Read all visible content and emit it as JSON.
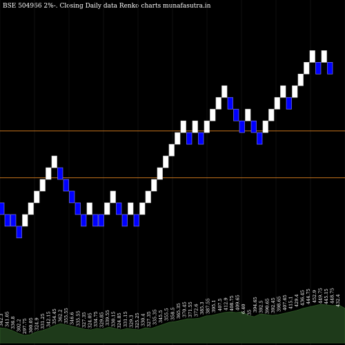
{
  "chart_data": {
    "type": "renko",
    "title": "BSE 504966  2%-.  Closing Daily data  Renko  charts munafasutra.in",
    "box_size_percent": 2,
    "colors": {
      "background": "#000000",
      "up_brick": "#ffffff",
      "down_brick": "#0000ff",
      "reference_line": "#c8761e",
      "volume_fill": "#1e3a1a",
      "volume_line": "#2f5a26"
    },
    "reference_lines": [
      362,
      390
    ],
    "bricks": [
      {
        "dir": "down",
        "low": 340
      },
      {
        "dir": "down",
        "low": 333
      },
      {
        "dir": "down",
        "low": 333
      },
      {
        "dir": "down",
        "low": 326
      },
      {
        "dir": "up",
        "low": 333
      },
      {
        "dir": "up",
        "low": 340
      },
      {
        "dir": "up",
        "low": 347
      },
      {
        "dir": "up",
        "low": 354
      },
      {
        "dir": "up",
        "low": 361
      },
      {
        "dir": "up",
        "low": 368
      },
      {
        "dir": "down",
        "low": 361
      },
      {
        "dir": "down",
        "low": 354
      },
      {
        "dir": "down",
        "low": 347
      },
      {
        "dir": "down",
        "low": 340
      },
      {
        "dir": "down",
        "low": 333
      },
      {
        "dir": "up",
        "low": 340
      },
      {
        "dir": "down",
        "low": 333
      },
      {
        "dir": "down",
        "low": 333
      },
      {
        "dir": "up",
        "low": 340
      },
      {
        "dir": "up",
        "low": 347
      },
      {
        "dir": "down",
        "low": 340
      },
      {
        "dir": "down",
        "low": 333
      },
      {
        "dir": "up",
        "low": 340
      },
      {
        "dir": "down",
        "low": 333
      },
      {
        "dir": "up",
        "low": 340
      },
      {
        "dir": "up",
        "low": 347
      },
      {
        "dir": "up",
        "low": 354
      },
      {
        "dir": "up",
        "low": 361
      },
      {
        "dir": "up",
        "low": 368
      },
      {
        "dir": "up",
        "low": 375
      },
      {
        "dir": "up",
        "low": 382
      },
      {
        "dir": "up",
        "low": 389
      },
      {
        "dir": "down",
        "low": 382
      },
      {
        "dir": "up",
        "low": 389
      },
      {
        "dir": "down",
        "low": 382
      },
      {
        "dir": "up",
        "low": 389
      },
      {
        "dir": "up",
        "low": 396
      },
      {
        "dir": "up",
        "low": 403
      },
      {
        "dir": "up",
        "low": 410
      },
      {
        "dir": "down",
        "low": 403
      },
      {
        "dir": "down",
        "low": 396
      },
      {
        "dir": "down",
        "low": 389
      },
      {
        "dir": "up",
        "low": 396
      },
      {
        "dir": "down",
        "low": 389
      },
      {
        "dir": "down",
        "low": 382
      },
      {
        "dir": "up",
        "low": 389
      },
      {
        "dir": "up",
        "low": 396
      },
      {
        "dir": "up",
        "low": 403
      },
      {
        "dir": "up",
        "low": 410
      },
      {
        "dir": "down",
        "low": 403
      },
      {
        "dir": "up",
        "low": 410
      },
      {
        "dir": "up",
        "low": 417
      },
      {
        "dir": "up",
        "low": 424
      },
      {
        "dir": "up",
        "low": 431
      },
      {
        "dir": "down",
        "low": 424
      },
      {
        "dir": "up",
        "low": 431
      },
      {
        "dir": "down",
        "low": 424
      }
    ],
    "y_range": [
      295,
      460
    ],
    "volume_labels": [
      "342.3",
      "341.05",
      "336.8",
      "302.2",
      "297.75",
      "300.05",
      "324.9",
      "331.25",
      "342.15",
      "354.45",
      "362.2",
      "355.55",
      "346.6",
      "335.55",
      "327.35",
      "324.05",
      "334.75",
      "329.85",
      "339.55",
      "330.15",
      "324.85",
      "331.15",
      "329.3",
      "325.25",
      "330.4",
      "327.35",
      "335.35",
      "345.5",
      "355.5",
      "358.5",
      "365.35",
      "370.45",
      "371.55",
      "372.6",
      "385.3",
      "387.55",
      "395.1",
      "407.5",
      "412.9",
      "408.75",
      "409.65",
      "6.40",
      "35",
      "394.65",
      "392.5",
      "390.65",
      "392.45",
      "398.65",
      "407.65",
      "415.1",
      "429.4",
      "436.45",
      "444.75",
      "452.9",
      "449.75",
      "445.15",
      "448.75",
      "432.4"
    ],
    "volume_values": [
      22,
      21,
      18,
      14,
      11,
      12,
      16,
      18,
      21,
      25,
      28,
      26,
      24,
      22,
      20,
      19,
      21,
      20,
      23,
      21,
      19,
      21,
      20,
      19,
      22,
      21,
      24,
      27,
      30,
      31,
      33,
      35,
      35,
      36,
      39,
      40,
      42,
      44,
      45,
      44,
      45,
      40,
      38,
      42,
      41,
      40,
      41,
      43,
      45,
      47,
      50,
      52,
      54,
      56,
      55,
      54,
      55,
      50
    ]
  }
}
